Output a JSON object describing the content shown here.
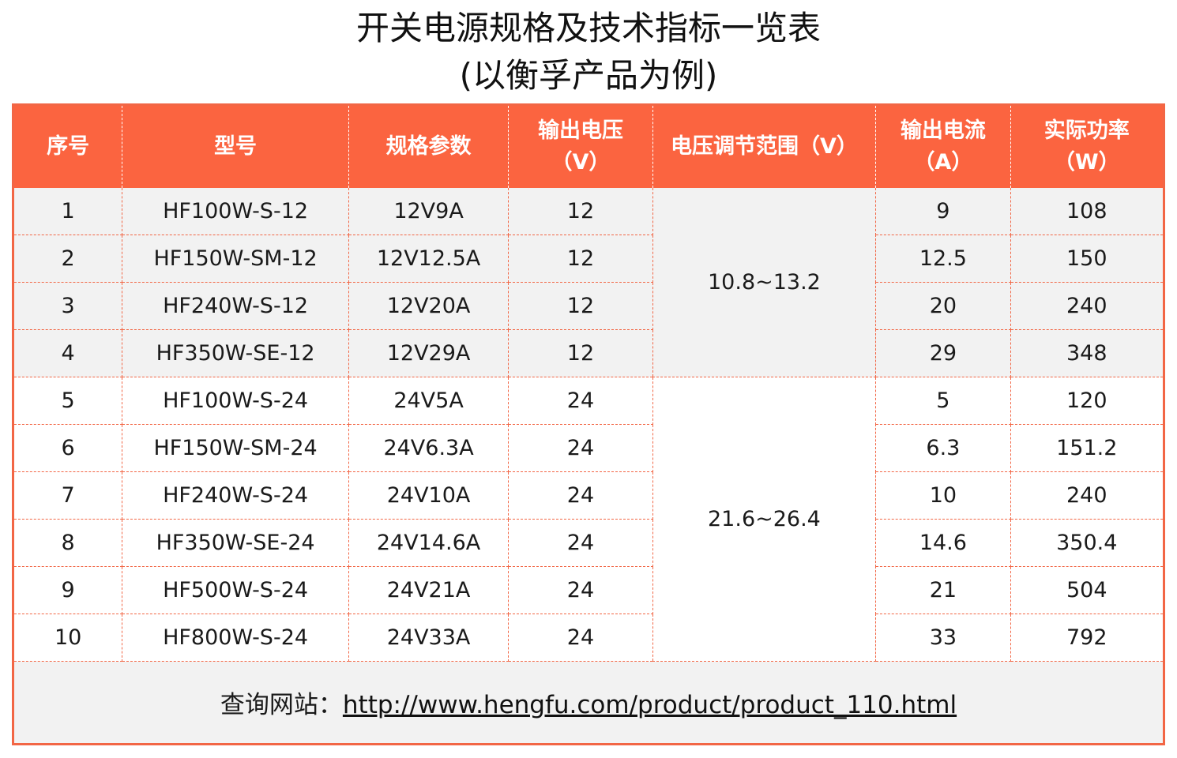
{
  "title": {
    "line1": "开关电源规格及技术指标一览表",
    "line2": "(以衡孚产品为例)"
  },
  "table": {
    "headers": [
      {
        "line1": "序号",
        "line2": ""
      },
      {
        "line1": "型号",
        "line2": ""
      },
      {
        "line1": "规格参数",
        "line2": ""
      },
      {
        "line1": "输出电压",
        "line2": "（V）"
      },
      {
        "line1": "电压调节范围（V）",
        "line2": ""
      },
      {
        "line1": "输出电流",
        "line2": "（A）"
      },
      {
        "line1": "实际功率",
        "line2": "（W）"
      }
    ],
    "rows": [
      {
        "no": "1",
        "model": "HF100W-S-12",
        "spec": "12V9A",
        "voltage": "12",
        "current": "9",
        "power": "108"
      },
      {
        "no": "2",
        "model": "HF150W-SM-12",
        "spec": "12V12.5A",
        "voltage": "12",
        "current": "12.5",
        "power": "150"
      },
      {
        "no": "3",
        "model": "HF240W-S-12",
        "spec": "12V20A",
        "voltage": "12",
        "current": "20",
        "power": "240"
      },
      {
        "no": "4",
        "model": "HF350W-SE-12",
        "spec": "12V29A",
        "voltage": "12",
        "current": "29",
        "power": "348"
      },
      {
        "no": "5",
        "model": "HF100W-S-24",
        "spec": "24V5A",
        "voltage": "24",
        "current": "5",
        "power": "120"
      },
      {
        "no": "6",
        "model": "HF150W-SM-24",
        "spec": "24V6.3A",
        "voltage": "24",
        "current": "6.3",
        "power": "151.2"
      },
      {
        "no": "7",
        "model": "HF240W-S-24",
        "spec": "24V10A",
        "voltage": "24",
        "current": "10",
        "power": "240"
      },
      {
        "no": "8",
        "model": "HF350W-SE-24",
        "spec": "24V14.6A",
        "voltage": "24",
        "current": "14.6",
        "power": "350.4"
      },
      {
        "no": "9",
        "model": "HF500W-S-24",
        "spec": "24V21A",
        "voltage": "24",
        "current": "21",
        "power": "504"
      },
      {
        "no": "10",
        "model": "HF800W-S-24",
        "spec": "24V33A",
        "voltage": "24",
        "current": "33",
        "power": "792"
      }
    ],
    "ranges": [
      "10.8~13.2",
      "21.6~26.4"
    ]
  },
  "footer": {
    "label": "查询网站：",
    "url": "http://www.hengfu.com/product/product_110.html"
  },
  "colors": {
    "header_bg": "#fb6440",
    "border": "#f26645",
    "shaded_row": "#f2f2f2"
  }
}
